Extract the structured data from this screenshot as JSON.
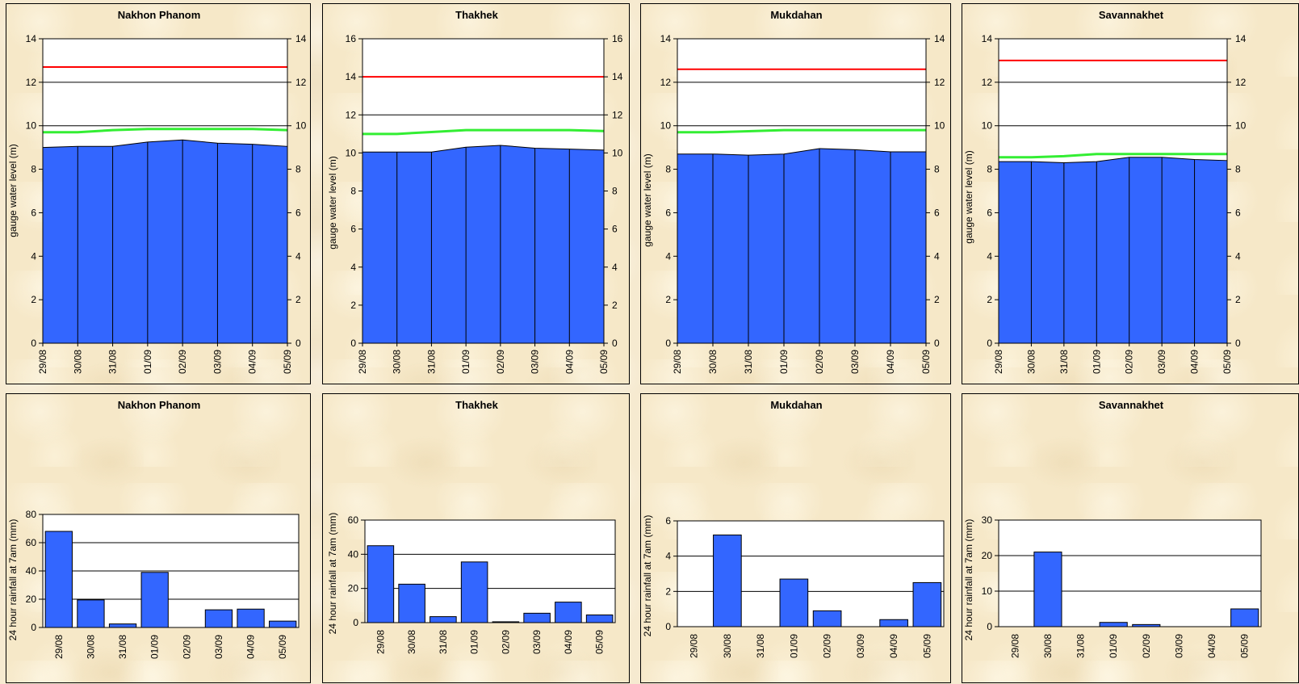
{
  "colors": {
    "fill": "#3366ff",
    "threshold_red": "#ff0000",
    "threshold_green": "#33ee33"
  },
  "chart_data": [
    {
      "type": "area",
      "title": "Nakhon Phanom",
      "ylabel": "gauge water level (m)",
      "xlabel": "",
      "categories": [
        "29/08",
        "30/08",
        "31/08",
        "01/09",
        "02/09",
        "03/09",
        "04/09",
        "05/09"
      ],
      "ylim": [
        0,
        14
      ],
      "yticks": [
        "0",
        "2",
        "4",
        "6",
        "8",
        "10",
        "12",
        "14"
      ],
      "secondary_y_axis": true,
      "series": [
        {
          "values": [
            9.0,
            9.05,
            9.05,
            9.25,
            9.35,
            9.2,
            9.15,
            9.05
          ]
        },
        {
          "values": [
            9.7,
            9.7,
            9.8,
            9.85,
            9.85,
            9.85,
            9.85,
            9.8
          ]
        },
        {
          "values": [
            12.7,
            12.7,
            12.7,
            12.7,
            12.7,
            12.7,
            12.7,
            12.7
          ]
        }
      ]
    },
    {
      "type": "area",
      "title": "Thakhek",
      "ylabel": "gauge water level (m)",
      "xlabel": "",
      "categories": [
        "29/08",
        "30/08",
        "31/08",
        "01/09",
        "02/09",
        "03/09",
        "04/09",
        "05/09"
      ],
      "ylim": [
        0,
        16
      ],
      "yticks": [
        "0",
        "2",
        "4",
        "6",
        "8",
        "10",
        "12",
        "14",
        "16"
      ],
      "secondary_y_axis": true,
      "series": [
        {
          "values": [
            10.05,
            10.05,
            10.05,
            10.3,
            10.4,
            10.25,
            10.2,
            10.15
          ]
        },
        {
          "values": [
            11.0,
            11.0,
            11.1,
            11.2,
            11.2,
            11.2,
            11.2,
            11.15
          ]
        },
        {
          "values": [
            14.0,
            14.0,
            14.0,
            14.0,
            14.0,
            14.0,
            14.0,
            14.0
          ]
        }
      ]
    },
    {
      "type": "area",
      "title": "Mukdahan",
      "ylabel": "gauge water level (m)",
      "xlabel": "",
      "categories": [
        "29/08",
        "30/08",
        "31/08",
        "01/09",
        "02/09",
        "03/09",
        "04/09",
        "05/09"
      ],
      "ylim": [
        0,
        14
      ],
      "yticks": [
        "0",
        "2",
        "4",
        "6",
        "8",
        "10",
        "12",
        "14"
      ],
      "secondary_y_axis": true,
      "series": [
        {
          "values": [
            8.7,
            8.7,
            8.65,
            8.7,
            8.95,
            8.9,
            8.8,
            8.8
          ]
        },
        {
          "values": [
            9.7,
            9.7,
            9.75,
            9.8,
            9.8,
            9.8,
            9.8,
            9.8
          ]
        },
        {
          "values": [
            12.6,
            12.6,
            12.6,
            12.6,
            12.6,
            12.6,
            12.6,
            12.6
          ]
        }
      ]
    },
    {
      "type": "area",
      "title": "Savannakhet",
      "ylabel": "gauge water level (m)",
      "xlabel": "",
      "categories": [
        "29/08",
        "30/08",
        "31/08",
        "01/09",
        "02/09",
        "03/09",
        "04/09",
        "05/09"
      ],
      "ylim": [
        0,
        14
      ],
      "yticks": [
        "0",
        "2",
        "4",
        "6",
        "8",
        "10",
        "12",
        "14"
      ],
      "y2ticks": [
        "0",
        "2",
        "4",
        "6",
        "8",
        "10",
        "12",
        "14"
      ],
      "secondary_y_axis": true,
      "series": [
        {
          "values": [
            8.35,
            8.35,
            8.3,
            8.35,
            8.55,
            8.55,
            8.45,
            8.4
          ]
        },
        {
          "values": [
            8.55,
            8.55,
            8.6,
            8.7,
            8.7,
            8.7,
            8.7,
            8.7
          ]
        },
        {
          "values": [
            13.0,
            13.0,
            13.0,
            13.0,
            13.0,
            13.0,
            13.0,
            13.0
          ]
        }
      ]
    },
    {
      "type": "bar",
      "title": "Nakhon Phanom",
      "ylabel": "24 hour rainfall at 7am (mm)",
      "xlabel": "",
      "categories": [
        "29/08",
        "30/08",
        "31/08",
        "01/09",
        "02/09",
        "03/09",
        "04/09",
        "05/09"
      ],
      "values": [
        68,
        19.5,
        2.5,
        39,
        0,
        12.5,
        13,
        4.5
      ],
      "ylim": [
        0,
        80
      ],
      "yticks": [
        "0",
        "20",
        "40",
        "60",
        "80"
      ]
    },
    {
      "type": "bar",
      "title": "Thakhek",
      "ylabel": "24 hour rainfall at 7am (mm)",
      "xlabel": "",
      "categories": [
        "29/08",
        "30/08",
        "31/08",
        "01/09",
        "02/09",
        "03/09",
        "04/09",
        "05/09"
      ],
      "values": [
        45,
        22.5,
        3.5,
        35.5,
        0.5,
        5.5,
        12,
        4.5
      ],
      "ylim": [
        0,
        60
      ],
      "yticks": [
        "0",
        "20",
        "40",
        "60"
      ]
    },
    {
      "type": "bar",
      "title": "Mukdahan",
      "ylabel": "24 hour rainfall at 7am (mm)",
      "xlabel": "",
      "categories": [
        "29/08",
        "30/08",
        "31/08",
        "01/09",
        "02/09",
        "03/09",
        "04/09",
        "05/09"
      ],
      "values": [
        0,
        5.2,
        0,
        2.7,
        0.9,
        0,
        0.4,
        2.5
      ],
      "ylim": [
        0,
        6
      ],
      "yticks": [
        "0",
        "2",
        "4",
        "6"
      ]
    },
    {
      "type": "bar",
      "title": "Savannakhet",
      "ylabel": "24 hour rainfall at 7am (mm)",
      "xlabel": "",
      "categories": [
        "29/08",
        "30/08",
        "31/08",
        "01/09",
        "02/09",
        "03/09",
        "04/09",
        "05/09"
      ],
      "values": [
        0,
        21,
        0,
        1.2,
        0.6,
        0,
        0,
        5
      ],
      "ylim": [
        0,
        30
      ],
      "yticks": [
        "0",
        "10",
        "20",
        "30"
      ]
    }
  ]
}
